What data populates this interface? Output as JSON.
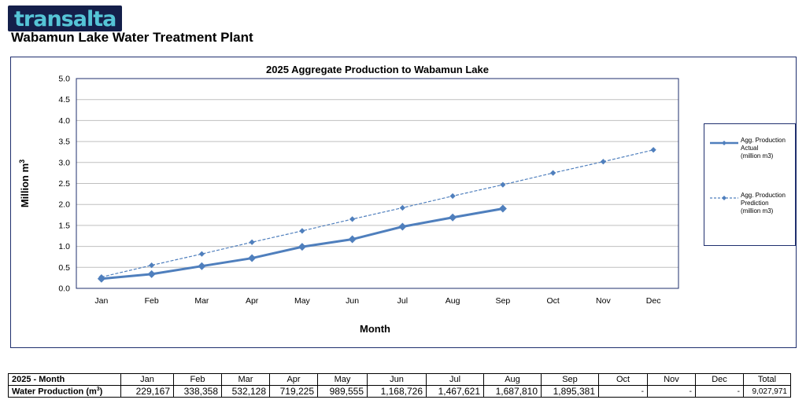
{
  "logo": {
    "text": "transalta"
  },
  "page_title": "Wabamun Lake Water Treatment Plant",
  "chart_data": {
    "type": "line",
    "title": "2025 Aggregate Production to Wabamun Lake",
    "xlabel": "Month",
    "ylabel": "Million m",
    "ylabel_sup": "3",
    "categories": [
      "Jan",
      "Feb",
      "Mar",
      "Apr",
      "May",
      "Jun",
      "Jul",
      "Aug",
      "Sep",
      "Oct",
      "Nov",
      "Dec"
    ],
    "ylim": [
      0,
      5.0
    ],
    "yticks": [
      "0.0",
      "0.5",
      "1.0",
      "1.5",
      "2.0",
      "2.5",
      "3.0",
      "3.5",
      "4.0",
      "4.5",
      "5.0"
    ],
    "grid": true,
    "legend_position": "right",
    "series": [
      {
        "name": "Agg. Production Actual (million m3)",
        "label_lines": [
          "Agg. Production",
          "Actual",
          "(million m3)"
        ],
        "style": "solid",
        "color": "#4f7fbd",
        "values": [
          0.23,
          0.34,
          0.53,
          0.72,
          0.99,
          1.17,
          1.47,
          1.69,
          1.9,
          null,
          null,
          null
        ]
      },
      {
        "name": "Agg. Production Prediction (million m3)",
        "label_lines": [
          "Agg. Production",
          "Prediction",
          "(million m3)"
        ],
        "style": "dashed",
        "color": "#4f7fbd",
        "values": [
          0.27,
          0.55,
          0.82,
          1.1,
          1.37,
          1.65,
          1.92,
          2.2,
          2.47,
          2.75,
          3.02,
          3.3
        ]
      }
    ]
  },
  "table": {
    "header_label": "2025 - Month",
    "months": [
      "Jan",
      "Feb",
      "Mar",
      "Apr",
      "May",
      "Jun",
      "Jul",
      "Aug",
      "Sep",
      "Oct",
      "Nov",
      "Dec"
    ],
    "total_label": "Total",
    "row_label": "Water Production (m",
    "row_label_sup": "3",
    "row_label_end": ")",
    "values": [
      "229,167",
      "338,358",
      "532,128",
      "719,225",
      "989,555",
      "1,168,726",
      "1,467,621",
      "1,687,810",
      "1,895,381",
      "-",
      "-",
      "-"
    ],
    "total": "9,027,971"
  }
}
